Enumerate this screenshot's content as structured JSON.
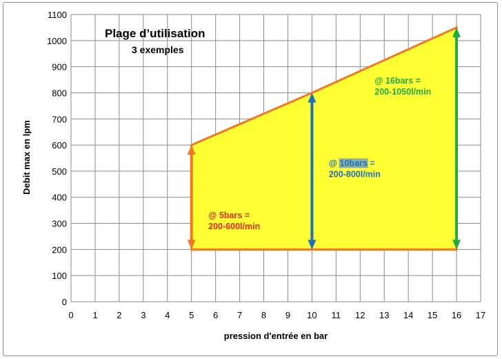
{
  "chart_data": {
    "type": "area",
    "title": "Plage d’utilisation",
    "subtitle": "3 exemples",
    "xlabel": "pression d'entrée en bar",
    "ylabel": "Debit max en lpm",
    "xlim": [
      0,
      17
    ],
    "ylim": [
      0,
      1100
    ],
    "xticks": [
      0,
      1,
      2,
      3,
      4,
      5,
      6,
      7,
      8,
      9,
      10,
      11,
      12,
      13,
      14,
      15,
      16,
      17
    ],
    "yticks": [
      0,
      100,
      200,
      300,
      400,
      500,
      600,
      700,
      800,
      900,
      1000,
      1100
    ],
    "grid": true,
    "region": {
      "fill": "#ffff33",
      "edge": "#f07820",
      "polygon": [
        [
          5,
          200
        ],
        [
          5,
          600
        ],
        [
          10,
          800
        ],
        [
          16,
          1050
        ],
        [
          16,
          200
        ]
      ]
    },
    "examples": [
      {
        "pressure": 5,
        "min": 200,
        "max": 600,
        "color": "#f07820",
        "line1_prefix": "@ ",
        "line1_highlight": "5bars",
        "line1_suffix": " =",
        "line2": "200-600l/min",
        "text_color": "#e8251f",
        "label_x": 5.7,
        "label_y": 320
      },
      {
        "pressure": 10,
        "min": 200,
        "max": 800,
        "color": "#1f6fbf",
        "line1_prefix": "@ ",
        "line1_highlight": "10bars",
        "line1_suffix": " =",
        "line2": "200-800l/min",
        "text_color": "#1f6fbf",
        "label_x": 10.7,
        "label_y": 520,
        "highlight_bg": "#8fb3a0"
      },
      {
        "pressure": 16,
        "min": 200,
        "max": 1050,
        "color": "#22aa3c",
        "line1_prefix": "@ ",
        "line1_highlight": "16bars",
        "line1_suffix": " =",
        "line2": "200-1050l/min",
        "text_color": "#22aa3c",
        "label_x": 12.6,
        "label_y": 835
      }
    ]
  }
}
